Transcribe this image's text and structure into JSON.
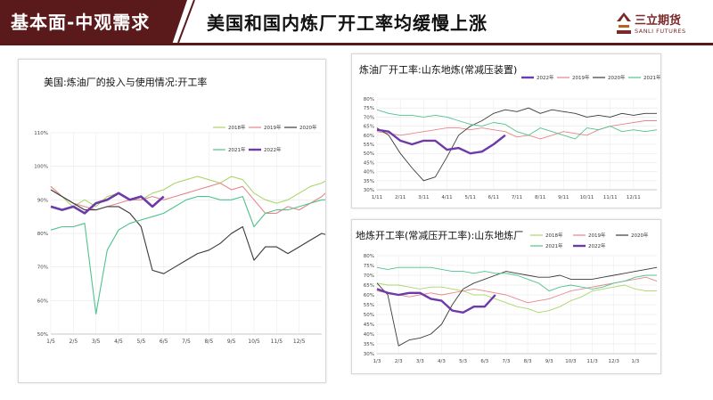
{
  "header": {
    "section_label": "基本面-中观需求",
    "title": "美国和国内炼厂开工率均缓慢上涨",
    "logo_cn": "三立期货",
    "logo_en": "SANLI FUTURES"
  },
  "colors": {
    "brand": "#5a1a1b",
    "y2018": "#a9d66b",
    "y2019": "#e8868b",
    "y2020": "#3a3a3a",
    "y2021": "#4fc38c",
    "y2022": "#6e3aa8"
  },
  "chart_data": [
    {
      "id": "us",
      "type": "line",
      "title": "美国:炼油厂的投入与使用情况:开工率",
      "ylim": [
        50,
        110
      ],
      "yticks": [
        "50%",
        "60%",
        "70%",
        "80%",
        "90%",
        "100%",
        "110%"
      ],
      "xlim": [
        0,
        12
      ],
      "xticks": [
        "1/5",
        "2/5",
        "3/5",
        "4/5",
        "5/5",
        "6/5",
        "7/5",
        "8/5",
        "9/5",
        "10/5",
        "11/5",
        "12/5"
      ],
      "legend_position": "top-right",
      "series": [
        {
          "name": "2018年",
          "color": "#a9d66b",
          "x": [
            0,
            0.5,
            0.8,
            1,
            1.5,
            2,
            2.5,
            3,
            3.5,
            4,
            4.5,
            5,
            5.5,
            6,
            6.5,
            7,
            7.5,
            8,
            8.5,
            9,
            9.5,
            10,
            10.5,
            11,
            11.5,
            12,
            12.5
          ],
          "y": [
            94,
            91,
            89,
            88,
            90,
            88,
            91,
            92,
            90,
            90,
            92,
            93,
            95,
            96,
            97,
            96,
            95,
            97,
            96,
            92,
            90,
            89,
            90,
            92,
            94,
            95,
            97
          ]
        },
        {
          "name": "2019年",
          "color": "#e8868b",
          "x": [
            0,
            0.5,
            1,
            1.5,
            2,
            2.5,
            3,
            3.5,
            4,
            4.5,
            5,
            5.5,
            6,
            6.5,
            7,
            7.5,
            8,
            8.5,
            9,
            9.5,
            10,
            10.5,
            11,
            11.5,
            12,
            12.5
          ],
          "y": [
            94,
            91,
            89,
            88,
            87,
            88,
            89,
            90,
            90,
            91,
            90,
            91,
            92,
            93,
            94,
            95,
            93,
            94,
            90,
            86,
            86,
            88,
            87,
            89,
            91,
            94
          ]
        },
        {
          "name": "2020年",
          "color": "#3a3a3a",
          "x": [
            0,
            0.5,
            1,
            1.5,
            2,
            2.5,
            3,
            3.5,
            4,
            4.5,
            5,
            5.5,
            6,
            6.5,
            7,
            7.5,
            8,
            8.5,
            9,
            9.5,
            10,
            10.5,
            11,
            11.5,
            12,
            12.5
          ],
          "y": [
            93,
            91,
            89,
            87,
            87,
            88,
            88,
            86,
            82,
            69,
            68,
            70,
            72,
            74,
            75,
            77,
            80,
            82,
            72,
            76,
            76,
            74,
            76,
            78,
            80,
            79
          ]
        },
        {
          "name": "2021年",
          "color": "#4fc38c",
          "x": [
            0,
            0.5,
            1,
            1.5,
            2,
            2.5,
            3,
            3.5,
            4,
            4.5,
            5,
            5.5,
            6,
            6.5,
            7,
            7.5,
            8,
            8.5,
            9,
            9.5,
            10,
            10.5,
            11,
            11.5,
            12,
            12.5
          ],
          "y": [
            81,
            82,
            82,
            83,
            56,
            75,
            81,
            83,
            84,
            85,
            86,
            88,
            90,
            91,
            91,
            90,
            90,
            91,
            82,
            86,
            87,
            87,
            88,
            89,
            90,
            90
          ]
        },
        {
          "name": "2022年",
          "color": "#6e3aa8",
          "x": [
            0,
            0.5,
            1,
            1.5,
            2,
            2.5,
            3,
            3.5,
            4,
            4.5,
            5
          ],
          "y": [
            88,
            87,
            88,
            86,
            89,
            90,
            92,
            90,
            91,
            88,
            91
          ]
        }
      ]
    },
    {
      "id": "sdref",
      "type": "line",
      "title": "炼油厂开工率:山东地炼(常减压装置)",
      "ylim": [
        30,
        80
      ],
      "yticks": [
        "30%",
        "35%",
        "40%",
        "45%",
        "50%",
        "55%",
        "60%",
        "65%",
        "70%",
        "75%",
        "80%"
      ],
      "xlim": [
        0,
        12
      ],
      "xticks": [
        "1/11",
        "2/11",
        "3/11",
        "4/11",
        "5/11",
        "6/11",
        "7/11",
        "8/11",
        "9/11",
        "10/11",
        "11/11",
        "12/11"
      ],
      "legend_position": "top",
      "series": [
        {
          "name": "2022年",
          "color": "#6e3aa8",
          "x": [
            0,
            0.5,
            1,
            1.5,
            2,
            2.5,
            3,
            3.5,
            4,
            4.5,
            5,
            5.5
          ],
          "y": [
            63,
            62,
            57,
            55,
            57,
            57,
            52,
            53,
            50,
            51,
            55,
            60
          ]
        },
        {
          "name": "2019年",
          "color": "#e8868b",
          "x": [
            0,
            0.5,
            1,
            1.5,
            2,
            2.5,
            3,
            3.5,
            4,
            4.5,
            5,
            5.5,
            6,
            6.5,
            7,
            7.5,
            8,
            8.5,
            9,
            9.5,
            10,
            10.5,
            11,
            11.5,
            12
          ],
          "y": [
            62,
            61,
            60,
            61,
            62,
            63,
            64,
            64,
            63,
            64,
            63,
            62,
            59,
            60,
            58,
            60,
            62,
            61,
            60,
            63,
            65,
            66,
            67,
            68,
            68
          ]
        },
        {
          "name": "2020年",
          "color": "#3a3a3a",
          "x": [
            0,
            0.5,
            1,
            1.5,
            2,
            2.5,
            3,
            3.5,
            4,
            4.5,
            5,
            5.5,
            6,
            6.5,
            7,
            7.5,
            8,
            8.5,
            9,
            9.5,
            10,
            10.5,
            11,
            11.5,
            12
          ],
          "y": [
            64,
            60,
            50,
            42,
            35,
            37,
            48,
            60,
            65,
            68,
            72,
            74,
            73,
            75,
            72,
            74,
            73,
            72,
            70,
            71,
            70,
            72,
            71,
            72,
            72
          ]
        },
        {
          "name": "2021年",
          "color": "#4fc38c",
          "x": [
            0,
            0.5,
            1,
            1.5,
            2,
            2.5,
            3,
            3.5,
            4,
            4.5,
            5,
            5.5,
            6,
            6.5,
            7,
            7.5,
            8,
            8.5,
            9,
            9.5,
            10,
            10.5,
            11,
            11.5,
            12
          ],
          "y": [
            74,
            72,
            71,
            71,
            70,
            71,
            70,
            68,
            66,
            65,
            67,
            66,
            62,
            60,
            64,
            62,
            60,
            58,
            64,
            63,
            65,
            62,
            63,
            62,
            63
          ]
        }
      ]
    },
    {
      "id": "sdcdu",
      "type": "line",
      "title": "地炼开工率(常减压开工率):山东地炼厂",
      "ylim": [
        30,
        80
      ],
      "yticks": [
        "30%",
        "35%",
        "40%",
        "45%",
        "50%",
        "55%",
        "60%",
        "65%",
        "70%",
        "75%",
        "80%"
      ],
      "xlim": [
        0,
        13
      ],
      "xticks": [
        "1/3",
        "2/3",
        "3/3",
        "4/3",
        "5/3",
        "6/3",
        "7/3",
        "8/3",
        "9/3",
        "10/3",
        "11/3",
        "12/3",
        "1/3"
      ],
      "legend_position": "top",
      "series": [
        {
          "name": "2018年",
          "color": "#a9d66b",
          "x": [
            0,
            0.5,
            1,
            1.5,
            2,
            2.5,
            3,
            3.5,
            4,
            4.5,
            5,
            5.5,
            6,
            6.5,
            7,
            7.5,
            8,
            8.5,
            9,
            9.5,
            10,
            10.5,
            11,
            11.5,
            12,
            12.5,
            13
          ],
          "y": [
            66,
            65,
            65,
            64,
            63,
            64,
            64,
            63,
            62,
            60,
            60,
            58,
            56,
            54,
            53,
            51,
            52,
            54,
            57,
            59,
            62,
            63,
            64,
            65,
            63,
            62,
            62
          ]
        },
        {
          "name": "2019年",
          "color": "#e8868b",
          "x": [
            0,
            0.5,
            1,
            1.5,
            2,
            2.5,
            3,
            3.5,
            4,
            4.5,
            5,
            5.5,
            6,
            6.5,
            7,
            7.5,
            8,
            8.5,
            9,
            9.5,
            10,
            10.5,
            11,
            11.5,
            12,
            12.5,
            13
          ],
          "y": [
            62,
            61,
            60,
            59,
            60,
            61,
            60,
            61,
            62,
            63,
            62,
            61,
            60,
            58,
            56,
            57,
            58,
            60,
            62,
            63,
            64,
            65,
            66,
            67,
            68,
            69,
            67
          ]
        },
        {
          "name": "2020年",
          "color": "#3a3a3a",
          "x": [
            0,
            0.5,
            1,
            1.5,
            2,
            2.5,
            3,
            3.5,
            4,
            4.5,
            5,
            5.5,
            6,
            6.5,
            7,
            7.5,
            8,
            8.5,
            9,
            9.5,
            10,
            10.5,
            11,
            11.5,
            12,
            12.5,
            13
          ],
          "y": [
            66,
            60,
            34,
            37,
            38,
            40,
            45,
            55,
            63,
            66,
            68,
            70,
            72,
            71,
            70,
            69,
            69,
            70,
            68,
            68,
            68,
            69,
            70,
            71,
            72,
            73,
            74
          ]
        },
        {
          "name": "2021年",
          "color": "#4fc38c",
          "x": [
            0,
            0.5,
            1,
            1.5,
            2,
            2.5,
            3,
            3.5,
            4,
            4.5,
            5,
            5.5,
            6,
            6.5,
            7,
            7.5,
            8,
            8.5,
            9,
            9.5,
            10,
            10.5,
            11,
            11.5,
            12,
            12.5,
            13
          ],
          "y": [
            74,
            73,
            74,
            74,
            74,
            74,
            73,
            72,
            72,
            71,
            72,
            71,
            71,
            70,
            68,
            66,
            62,
            64,
            65,
            64,
            63,
            64,
            66,
            67,
            69,
            70,
            70
          ]
        },
        {
          "name": "2022年",
          "color": "#6e3aa8",
          "x": [
            0,
            0.5,
            1,
            1.5,
            2,
            2.5,
            3,
            3.5,
            4,
            4.5,
            5,
            5.5
          ],
          "y": [
            63,
            61,
            60,
            61,
            61,
            58,
            57,
            52,
            51,
            54,
            54,
            60
          ]
        }
      ]
    }
  ]
}
